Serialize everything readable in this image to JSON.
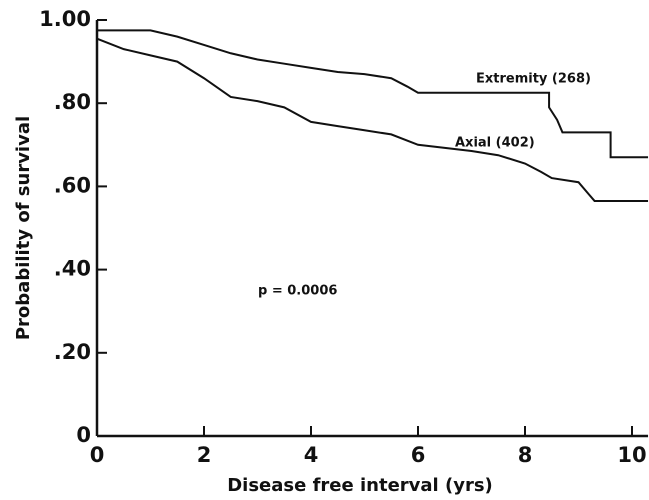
{
  "chart_data": {
    "type": "line",
    "xlabel": "Disease free interval (yrs)",
    "ylabel": "Probability of survival",
    "xlim": [
      0,
      10.3
    ],
    "ylim": [
      0,
      1.0
    ],
    "xticks": [
      0,
      2,
      4,
      6,
      8,
      10
    ],
    "yticks": [
      0,
      {
        "value": 0.2,
        "label": ".20"
      },
      {
        "value": 0.4,
        "label": ".40"
      },
      {
        "value": 0.6,
        "label": ".60"
      },
      {
        "value": 0.8,
        "label": ".80"
      },
      {
        "value": 1.0,
        "label": "1.00"
      }
    ],
    "series": [
      {
        "name": "Extremity (268)",
        "color": "#111111",
        "x": [
          0,
          1.0,
          1.5,
          2,
          2.5,
          3,
          3.5,
          4,
          4.5,
          5,
          5.5,
          5.8,
          6,
          8.45,
          8.45,
          8.6,
          8.7,
          9.6,
          9.6,
          10.3
        ],
        "values": [
          0.975,
          0.975,
          0.96,
          0.94,
          0.92,
          0.905,
          0.895,
          0.885,
          0.875,
          0.87,
          0.86,
          0.84,
          0.825,
          0.825,
          0.79,
          0.76,
          0.73,
          0.73,
          0.67,
          0.67
        ]
      },
      {
        "name": "Axial (402)",
        "color": "#111111",
        "x": [
          0,
          0.5,
          1,
          1.5,
          2,
          2.5,
          3,
          3.5,
          4,
          4.5,
          5,
          5.5,
          6,
          7,
          7.5,
          8,
          8.3,
          8.5,
          9,
          9.2,
          9.3,
          10.3
        ],
        "values": [
          0.955,
          0.93,
          0.915,
          0.9,
          0.86,
          0.815,
          0.805,
          0.79,
          0.755,
          0.745,
          0.735,
          0.725,
          0.7,
          0.685,
          0.675,
          0.655,
          0.635,
          0.62,
          0.61,
          0.58,
          0.565,
          0.565
        ]
      }
    ],
    "annotation": "p = 0.0006"
  }
}
